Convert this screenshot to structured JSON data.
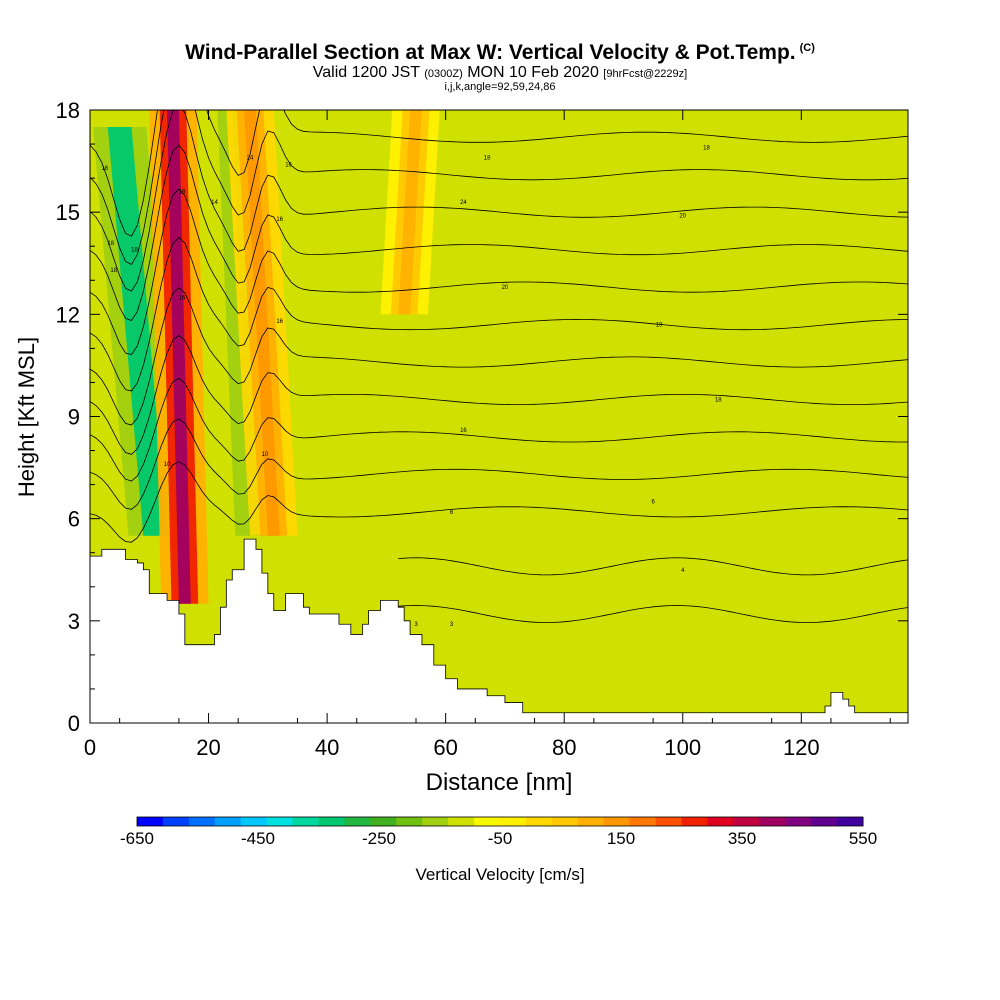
{
  "header": {
    "title": "Wind-Parallel Section at Max W: Vertical Velocity & Pot.Temp.",
    "title_mark": "(C)",
    "valid_prefix": "Valid 1200 JST",
    "valid_zulu": "(0300Z)",
    "valid_date": "MON 10 Feb 2020",
    "forecast": "[9hrFcst@2229z]",
    "indices": "i,j,k,angle=92,59,24,86"
  },
  "chart_data": {
    "type": "heatmap",
    "xlabel": "Distance [nm]",
    "ylabel": "Height [Kft MSL]",
    "xlim": [
      0,
      138
    ],
    "ylim": [
      0,
      18
    ],
    "x_ticks": [
      0,
      20,
      40,
      60,
      80,
      100,
      120
    ],
    "y_ticks": [
      0,
      3,
      6,
      9,
      12,
      15,
      18
    ],
    "colorbar": {
      "label": "Vertical Velocity [cm/s]",
      "range": [
        -650,
        550
      ],
      "step": 50,
      "tick_labels": [
        "-650",
        "-450",
        "-250",
        "-50",
        "150",
        "350",
        "550"
      ],
      "colors": [
        "#0000ff",
        "#0040ff",
        "#0070ff",
        "#00a0ff",
        "#00c8ff",
        "#00e0e0",
        "#00d8a0",
        "#00c870",
        "#20b840",
        "#40b020",
        "#70c010",
        "#a0d010",
        "#d0e000",
        "#f8f800",
        "#fff000",
        "#ffd800",
        "#ffc800",
        "#ffb000",
        "#ff9800",
        "#ff7800",
        "#ff5000",
        "#f02000",
        "#e00020",
        "#c00040",
        "#a00060",
        "#800080",
        "#600090",
        "#4000a0"
      ]
    },
    "terrain_top_kft": [
      [
        0,
        4.9
      ],
      [
        2,
        5.1
      ],
      [
        5,
        5.1
      ],
      [
        6,
        4.8
      ],
      [
        8,
        4.7
      ],
      [
        9,
        4.5
      ],
      [
        10,
        3.8
      ],
      [
        13,
        3.6
      ],
      [
        15,
        3.2
      ],
      [
        16,
        2.3
      ],
      [
        20,
        2.3
      ],
      [
        21,
        2.6
      ],
      [
        22,
        3.4
      ],
      [
        23,
        4.2
      ],
      [
        24,
        4.5
      ],
      [
        26,
        5.4
      ],
      [
        28,
        5.1
      ],
      [
        29,
        4.4
      ],
      [
        30,
        3.8
      ],
      [
        31,
        3.3
      ],
      [
        33,
        3.8
      ],
      [
        35,
        3.8
      ],
      [
        36,
        3.4
      ],
      [
        37,
        3.2
      ],
      [
        41,
        3.2
      ],
      [
        42,
        2.9
      ],
      [
        44,
        2.6
      ],
      [
        46,
        2.9
      ],
      [
        47,
        3.3
      ],
      [
        49,
        3.6
      ],
      [
        52,
        3.4
      ],
      [
        53,
        3.0
      ],
      [
        54,
        2.6
      ],
      [
        56,
        2.3
      ],
      [
        58,
        1.7
      ],
      [
        60,
        1.3
      ],
      [
        62,
        1.0
      ],
      [
        67,
        0.8
      ],
      [
        70,
        0.6
      ],
      [
        73,
        0.3
      ],
      [
        123,
        0.3
      ],
      [
        124,
        0.5
      ],
      [
        125,
        0.9
      ],
      [
        127,
        0.7
      ],
      [
        128,
        0.5
      ],
      [
        129,
        0.3
      ],
      [
        138,
        0.3
      ]
    ],
    "updraft_bands": [
      {
        "name": "strong-updraft-1",
        "w_max": 550,
        "base": [
          16,
          3.5
        ],
        "top": [
          14,
          18
        ]
      },
      {
        "name": "updraft-2",
        "w_max": 250,
        "base": [
          31,
          5.5
        ],
        "top": [
          27,
          18
        ]
      },
      {
        "name": "updraft-3",
        "w_max": 200,
        "base": [
          53,
          12
        ],
        "top": [
          55,
          18
        ]
      }
    ],
    "downdraft_bands": [
      {
        "name": "downdraft-1",
        "w_min": -300,
        "base": [
          11,
          5.5
        ],
        "top": [
          5,
          17.5
        ]
      },
      {
        "name": "downdraft-2",
        "w_min": -250,
        "base": [
          29,
          5.5
        ],
        "top": [
          26,
          18
        ]
      }
    ],
    "pot_temp_contour_labels": [
      {
        "x": 2.5,
        "y": 16.3,
        "label": "16"
      },
      {
        "x": 3.5,
        "y": 14.1,
        "label": "18"
      },
      {
        "x": 7.5,
        "y": 13.9,
        "label": "18"
      },
      {
        "x": 4,
        "y": 13.3,
        "label": "18"
      },
      {
        "x": 15.5,
        "y": 15.6,
        "label": "18"
      },
      {
        "x": 15.5,
        "y": 12.5,
        "label": "16"
      },
      {
        "x": 13,
        "y": 7.6,
        "label": "10"
      },
      {
        "x": 21,
        "y": 15.3,
        "label": "14"
      },
      {
        "x": 27,
        "y": 16.6,
        "label": "24"
      },
      {
        "x": 33.5,
        "y": 16.4,
        "label": "16"
      },
      {
        "x": 32,
        "y": 14.8,
        "label": "16"
      },
      {
        "x": 32,
        "y": 11.8,
        "label": "16"
      },
      {
        "x": 29.5,
        "y": 7.9,
        "label": "10"
      },
      {
        "x": 63,
        "y": 15.3,
        "label": "24"
      },
      {
        "x": 67,
        "y": 16.6,
        "label": "18"
      },
      {
        "x": 104,
        "y": 16.9,
        "label": "18"
      },
      {
        "x": 100,
        "y": 14.9,
        "label": "20"
      },
      {
        "x": 70,
        "y": 12.8,
        "label": "20"
      },
      {
        "x": 96,
        "y": 11.7,
        "label": "19"
      },
      {
        "x": 63,
        "y": 8.6,
        "label": "16"
      },
      {
        "x": 106,
        "y": 9.5,
        "label": "18"
      },
      {
        "x": 61,
        "y": 6.2,
        "label": "6"
      },
      {
        "x": 95,
        "y": 6.5,
        "label": "6"
      },
      {
        "x": 100,
        "y": 4.5,
        "label": "4"
      },
      {
        "x": 55,
        "y": 2.9,
        "label": "3"
      },
      {
        "x": 61,
        "y": 2.9,
        "label": "3"
      }
    ]
  }
}
